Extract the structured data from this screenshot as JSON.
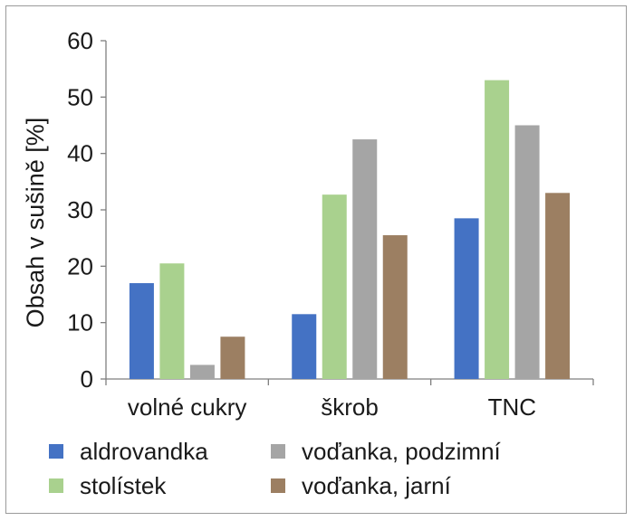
{
  "chart_data": {
    "type": "bar",
    "title": "",
    "xlabel": "",
    "ylabel": "Obsah v sušině [%]",
    "ylim": [
      0,
      60
    ],
    "yticks": [
      0,
      10,
      20,
      30,
      40,
      50,
      60
    ],
    "categories": [
      "volné cukry",
      "škrob",
      "TNC"
    ],
    "series": [
      {
        "name": "aldrovandka",
        "color": "#4472C4",
        "values": [
          17.0,
          11.5,
          28.5
        ]
      },
      {
        "name": "stolístek",
        "color": "#A9D18E",
        "values": [
          20.5,
          32.7,
          53.0
        ]
      },
      {
        "name": "voďanka, podzimní",
        "color": "#A5A5A5",
        "values": [
          2.5,
          42.5,
          45.0
        ]
      },
      {
        "name": "voďanka, jarní",
        "color": "#9C7F62",
        "values": [
          7.5,
          25.5,
          33.0
        ]
      }
    ],
    "grid": false,
    "legend_position": "bottom"
  }
}
